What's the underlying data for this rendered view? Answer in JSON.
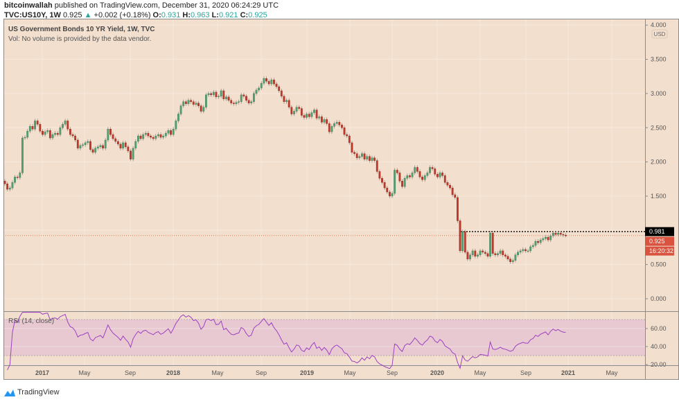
{
  "header": {
    "publisher": "bitcoinwallah",
    "published_text": "published on TradingView.com, December 31, 2020 06:24:29 UTC",
    "symbol": "TVC:US10Y, 1W",
    "last": "0.925",
    "change_icon": "triangle-up-icon",
    "change": "+0.002 (+0.18%)",
    "o_label": "O:",
    "o": "0.931",
    "h_label": "H:",
    "h": "0.963",
    "l_label": "L:",
    "l": "0.921",
    "c_label": "C:",
    "c": "0.925"
  },
  "legend": {
    "title": "US Government Bonds 10 YR Yield, 1W, TVC",
    "volume": "Vol: No volume is provided by the data vendor."
  },
  "rsi": {
    "label": "RSI (14, close)",
    "ticks": [
      "60.00",
      "40.00",
      "20.00"
    ],
    "band": [
      30,
      70
    ]
  },
  "price_axis": {
    "currency": "USD",
    "ticks": [
      "4.000",
      "3.500",
      "3.000",
      "2.500",
      "2.000",
      "1.500",
      "0.500",
      "0.000"
    ],
    "high_marker": "0.981",
    "last_marker": "0.925",
    "countdown": "16:20:32"
  },
  "time_axis": [
    "2017",
    "May",
    "Sep",
    "2018",
    "May",
    "Sep",
    "2019",
    "May",
    "Sep",
    "2020",
    "May",
    "Sep",
    "2021",
    "May"
  ],
  "footer": {
    "brand": "TradingView"
  },
  "colors": {
    "background": "#f2dfce",
    "up": "#53a072",
    "down": "#c0392b",
    "rsi_line": "#9c3fc2",
    "rsi_band": "#e8c9d2",
    "teal": "#26a69a"
  },
  "chart_data": {
    "type": "candlestick",
    "symbol": "US10Y",
    "interval": "1W",
    "ylim": [
      0,
      4
    ],
    "reference_lines": {
      "high": 0.981,
      "last": 0.925
    },
    "first_open": 1.72,
    "closes": [
      1.68,
      1.6,
      1.62,
      1.7,
      1.78,
      1.77,
      1.84,
      2.35,
      2.36,
      2.45,
      2.52,
      2.48,
      2.6,
      2.55,
      2.45,
      2.4,
      2.44,
      2.46,
      2.35,
      2.4,
      2.42,
      2.4,
      2.5,
      2.55,
      2.6,
      2.48,
      2.4,
      2.38,
      2.32,
      2.2,
      2.24,
      2.25,
      2.28,
      2.3,
      2.18,
      2.14,
      2.2,
      2.22,
      2.24,
      2.2,
      2.32,
      2.48,
      2.4,
      2.34,
      2.3,
      2.26,
      2.2,
      2.28,
      2.22,
      2.16,
      2.04,
      2.2,
      2.3,
      2.38,
      2.34,
      2.4,
      2.42,
      2.38,
      2.36,
      2.34,
      2.38,
      2.4,
      2.36,
      2.38,
      2.42,
      2.46,
      2.4,
      2.48,
      2.6,
      2.7,
      2.82,
      2.88,
      2.85,
      2.9,
      2.88,
      2.84,
      2.86,
      2.82,
      2.74,
      2.8,
      2.98,
      3.0,
      2.98,
      3.02,
      2.95,
      2.96,
      3.04,
      2.92,
      2.95,
      2.9,
      2.86,
      2.85,
      2.87,
      2.88,
      2.98,
      2.96,
      2.9,
      2.86,
      2.88,
      3.0,
      3.05,
      3.08,
      3.15,
      3.22,
      3.18,
      3.14,
      3.2,
      3.14,
      3.1,
      3.04,
      2.96,
      2.88,
      2.9,
      2.8,
      2.7,
      2.74,
      2.8,
      2.78,
      2.68,
      2.65,
      2.7,
      2.66,
      2.72,
      2.76,
      2.64,
      2.66,
      2.58,
      2.62,
      2.56,
      2.44,
      2.52,
      2.56,
      2.58,
      2.54,
      2.5,
      2.4,
      2.38,
      2.28,
      2.14,
      2.12,
      2.06,
      2.08,
      2.12,
      2.04,
      2.08,
      2.02,
      2.06,
      2.02,
      1.86,
      1.76,
      1.7,
      1.62,
      1.56,
      1.5,
      1.54,
      1.88,
      1.84,
      1.72,
      1.64,
      1.76,
      1.8,
      1.78,
      1.84,
      1.92,
      1.86,
      1.78,
      1.74,
      1.8,
      1.84,
      1.92,
      1.9,
      1.82,
      1.78,
      1.84,
      1.8,
      1.7,
      1.66,
      1.62,
      1.52,
      1.48,
      1.14,
      0.7,
      0.98,
      0.68,
      0.58,
      0.64,
      0.7,
      0.62,
      0.64,
      0.7,
      0.68,
      0.66,
      0.62,
      0.96,
      0.66,
      0.64,
      0.66,
      0.7,
      0.64,
      0.62,
      0.58,
      0.54,
      0.56,
      0.64,
      0.68,
      0.7,
      0.72,
      0.7,
      0.7,
      0.76,
      0.78,
      0.84,
      0.82,
      0.86,
      0.88,
      0.9,
      0.86,
      0.92,
      0.96,
      0.94,
      0.96,
      0.94,
      0.93,
      0.925
    ]
  }
}
